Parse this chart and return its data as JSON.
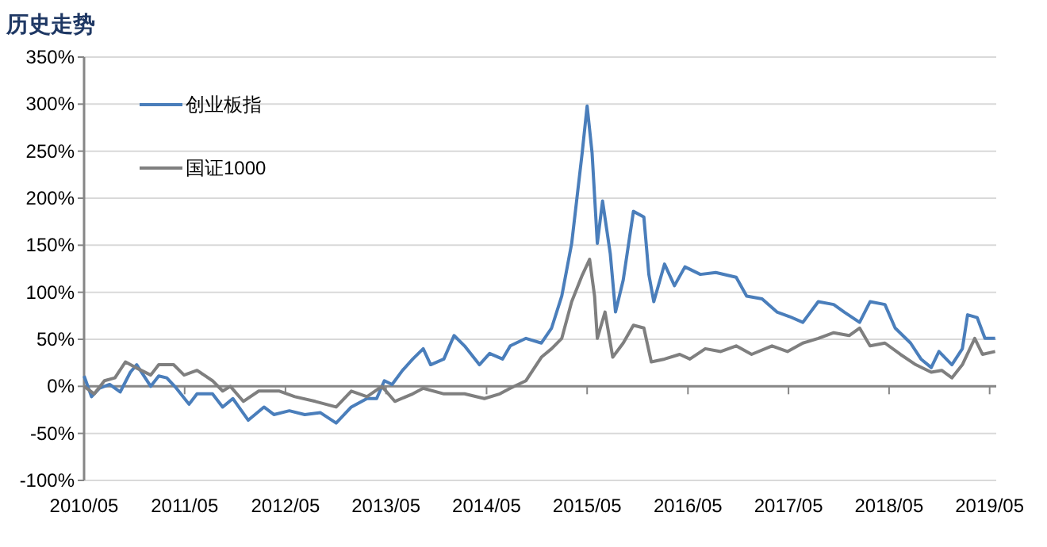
{
  "chart_data": {
    "type": "line",
    "title": "历史走势",
    "xlim": [
      "2010-05-01",
      "2019-05-25"
    ],
    "xticks": [
      {
        "value": "2010-05",
        "label": "2010/05"
      },
      {
        "value": "2011-05",
        "label": "2011/05"
      },
      {
        "value": "2012-05",
        "label": "2012/05"
      },
      {
        "value": "2013-05",
        "label": "2013/05"
      },
      {
        "value": "2014-05",
        "label": "2014/05"
      },
      {
        "value": "2015-05",
        "label": "2015/05"
      },
      {
        "value": "2016-05",
        "label": "2016/05"
      },
      {
        "value": "2017-05",
        "label": "2017/05"
      },
      {
        "value": "2018-05",
        "label": "2018/05"
      },
      {
        "value": "2019-05",
        "label": "2019/05"
      }
    ],
    "ylim": [
      -100,
      350
    ],
    "yticks": [
      {
        "value": -100,
        "label": "-100%"
      },
      {
        "value": -50,
        "label": "-50%"
      },
      {
        "value": 0,
        "label": "0%"
      },
      {
        "value": 50,
        "label": "50%"
      },
      {
        "value": 100,
        "label": "100%"
      },
      {
        "value": 150,
        "label": "150%"
      },
      {
        "value": 200,
        "label": "200%"
      },
      {
        "value": 250,
        "label": "250%"
      },
      {
        "value": 300,
        "label": "300%"
      },
      {
        "value": 350,
        "label": "350%"
      }
    ],
    "grid": "y",
    "legend": "top left",
    "series": [
      {
        "name": "创业板指",
        "color": "#4a7ebb",
        "x": [
          "2010-05-01",
          "2010-05-28",
          "2010-06-26",
          "2010-08-02",
          "2010-09-09",
          "2010-10-16",
          "2010-11-08",
          "2010-12-29",
          "2011-01-27",
          "2011-02-25",
          "2011-04-01",
          "2011-05-17",
          "2011-06-15",
          "2011-08-10",
          "2011-09-16",
          "2011-10-23",
          "2011-12-18",
          "2012-02-13",
          "2012-03-20",
          "2012-05-15",
          "2012-07-10",
          "2012-09-05",
          "2012-11-01",
          "2012-12-26",
          "2013-02-21",
          "2013-03-28",
          "2013-04-25",
          "2013-05-23",
          "2013-06-30",
          "2013-08-06",
          "2013-09-13",
          "2013-10-10",
          "2013-11-27",
          "2014-01-03",
          "2014-02-10",
          "2014-04-05",
          "2014-05-12",
          "2014-06-28",
          "2014-07-26",
          "2014-09-21",
          "2014-11-16",
          "2014-12-23",
          "2015-01-29",
          "2015-03-06",
          "2015-04-13",
          "2015-05-01",
          "2015-05-19",
          "2015-06-07",
          "2015-06-26",
          "2015-07-24",
          "2015-08-12",
          "2015-09-09",
          "2015-10-16",
          "2015-11-23",
          "2015-12-11",
          "2015-12-29",
          "2016-02-06",
          "2016-03-13",
          "2016-04-20",
          "2016-06-15",
          "2016-08-10",
          "2016-10-23",
          "2016-11-30",
          "2017-01-25",
          "2017-03-20",
          "2017-05-06",
          "2017-06-22",
          "2017-08-17",
          "2017-10-12",
          "2017-11-19",
          "2018-01-14",
          "2018-02-21",
          "2018-04-16",
          "2018-05-23",
          "2018-07-18",
          "2018-08-25",
          "2018-10-01",
          "2018-10-29",
          "2018-12-15",
          "2019-01-22",
          "2019-02-10",
          "2019-03-17",
          "2019-04-14",
          "2019-05-21"
        ],
        "values": [
          11,
          -11,
          -2,
          2,
          -6,
          15,
          23,
          0,
          11,
          9,
          -2,
          -19,
          -8,
          -8,
          -22,
          -13,
          -36,
          -22,
          -30,
          -26,
          -30,
          -28,
          -39,
          -22,
          -13,
          -13,
          6,
          2,
          17,
          29,
          40,
          23,
          29,
          54,
          43,
          23,
          35,
          29,
          43,
          51,
          46,
          62,
          96,
          152,
          248,
          298,
          248,
          152,
          197,
          141,
          79,
          113,
          186,
          180,
          119,
          90,
          130,
          107,
          127,
          119,
          121,
          116,
          96,
          93,
          79,
          74,
          68,
          90,
          87,
          79,
          68,
          90,
          87,
          62,
          46,
          29,
          20,
          37,
          23,
          40,
          76,
          73,
          51,
          51
        ]
      },
      {
        "name": "国证1000",
        "color": "#7f7f7f",
        "x": [
          "2010-05-01",
          "2010-06-07",
          "2010-07-14",
          "2010-08-21",
          "2010-09-28",
          "2010-11-04",
          "2010-12-29",
          "2011-01-27",
          "2011-03-22",
          "2011-04-29",
          "2011-06-15",
          "2011-08-10",
          "2011-09-16",
          "2011-10-14",
          "2011-11-30",
          "2012-01-25",
          "2012-04-09",
          "2012-06-04",
          "2012-08-17",
          "2012-11-01",
          "2012-12-26",
          "2013-02-21",
          "2013-04-16",
          "2013-06-02",
          "2013-08-06",
          "2013-09-13",
          "2013-11-27",
          "2014-02-10",
          "2014-04-23",
          "2014-06-18",
          "2014-07-26",
          "2014-09-21",
          "2014-11-16",
          "2014-12-23",
          "2015-01-29",
          "2015-03-06",
          "2015-04-13",
          "2015-05-10",
          "2015-05-28",
          "2015-06-07",
          "2015-07-05",
          "2015-08-02",
          "2015-09-09",
          "2015-10-16",
          "2015-11-23",
          "2015-12-20",
          "2016-02-06",
          "2016-04-01",
          "2016-05-08",
          "2016-07-03",
          "2016-08-28",
          "2016-10-23",
          "2016-12-18",
          "2017-03-02",
          "2017-04-27",
          "2017-06-22",
          "2017-08-17",
          "2017-10-12",
          "2017-12-07",
          "2018-01-14",
          "2018-02-21",
          "2018-04-16",
          "2018-06-11",
          "2018-08-06",
          "2018-10-01",
          "2018-11-08",
          "2018-12-15",
          "2019-01-22",
          "2019-03-08",
          "2019-04-05",
          "2019-05-21"
        ],
        "values": [
          0,
          -8,
          6,
          9,
          26,
          20,
          12,
          23,
          23,
          12,
          17,
          6,
          -5,
          0,
          -16,
          -5,
          -5,
          -11,
          -16,
          -22,
          -5,
          -11,
          0,
          -16,
          -8,
          -2,
          -8,
          -8,
          -13,
          -8,
          -2,
          6,
          31,
          40,
          51,
          90,
          118,
          135,
          96,
          51,
          79,
          31,
          46,
          65,
          62,
          26,
          29,
          34,
          29,
          40,
          37,
          43,
          34,
          43,
          37,
          46,
          51,
          57,
          54,
          62,
          43,
          46,
          34,
          23,
          15,
          17,
          9,
          23,
          51,
          34,
          37
        ]
      }
    ]
  }
}
